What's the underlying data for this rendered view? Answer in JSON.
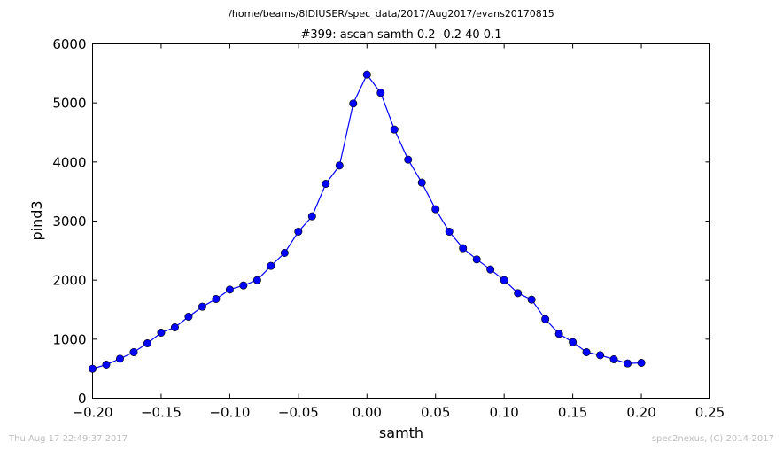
{
  "chart_data": {
    "type": "line",
    "suptitle": "/home/beams/8IDIUSER/spec_data/2017/Aug2017/evans20170815",
    "title": "#399: ascan  samth 0.2 -0.2  40 0.1",
    "xlabel": "samth",
    "ylabel": "pind3",
    "xlim": [
      -0.2,
      0.25
    ],
    "ylim": [
      0,
      6000
    ],
    "xticks": [
      -0.2,
      -0.15,
      -0.1,
      -0.05,
      0.0,
      0.05,
      0.1,
      0.15,
      0.2,
      0.25
    ],
    "xtick_labels": [
      "−0.20",
      "−0.15",
      "−0.10",
      "−0.05",
      "0.00",
      "0.05",
      "0.10",
      "0.15",
      "0.20",
      "0.25"
    ],
    "yticks": [
      0,
      1000,
      2000,
      3000,
      4000,
      5000,
      6000
    ],
    "ytick_labels": [
      "0",
      "1000",
      "2000",
      "3000",
      "4000",
      "5000",
      "6000"
    ],
    "grid": false,
    "marker": "circle",
    "line_color": "#0000ff",
    "x": [
      -0.2,
      -0.19,
      -0.18,
      -0.17,
      -0.16,
      -0.15,
      -0.14,
      -0.13,
      -0.12,
      -0.11,
      -0.1,
      -0.09,
      -0.08,
      -0.07,
      -0.06,
      -0.05,
      -0.04,
      -0.03,
      -0.02,
      -0.01,
      0.0,
      0.01,
      0.02,
      0.03,
      0.04,
      0.05,
      0.06,
      0.07,
      0.08,
      0.09,
      0.1,
      0.11,
      0.12,
      0.13,
      0.14,
      0.15,
      0.16,
      0.17,
      0.18,
      0.19,
      0.2
    ],
    "y": [
      500,
      570,
      670,
      780,
      930,
      1110,
      1200,
      1380,
      1550,
      1680,
      1840,
      1910,
      2000,
      2240,
      2460,
      2820,
      3080,
      3630,
      3940,
      4990,
      5480,
      5170,
      4550,
      4040,
      3650,
      3200,
      2820,
      2540,
      2350,
      2180,
      2000,
      1780,
      1670,
      1340,
      1090,
      950,
      780,
      730,
      660,
      590,
      600
    ]
  },
  "footer": {
    "timestamp": "Thu Aug 17 22:49:37 2017",
    "credit": "spec2nexus, (C) 2014-2017"
  }
}
